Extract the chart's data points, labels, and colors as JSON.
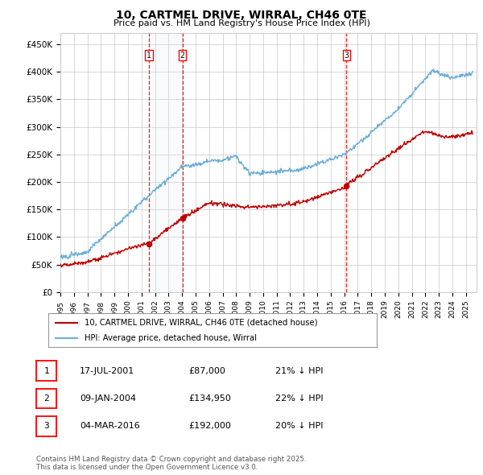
{
  "title": "10, CARTMEL DRIVE, WIRRAL, CH46 0TE",
  "subtitle": "Price paid vs. HM Land Registry's House Price Index (HPI)",
  "ylim": [
    0,
    470000
  ],
  "yticks": [
    0,
    50000,
    100000,
    150000,
    200000,
    250000,
    300000,
    350000,
    400000,
    450000
  ],
  "ytick_labels": [
    "£0",
    "£50K",
    "£100K",
    "£150K",
    "£200K",
    "£250K",
    "£300K",
    "£350K",
    "£400K",
    "£450K"
  ],
  "legend_entry1": "10, CARTMEL DRIVE, WIRRAL, CH46 0TE (detached house)",
  "legend_entry2": "HPI: Average price, detached house, Wirral",
  "transaction1_label": "1",
  "transaction1_date": "17-JUL-2001",
  "transaction1_price": "£87,000",
  "transaction1_hpi": "21% ↓ HPI",
  "transaction1_year": 2001.54,
  "transaction1_value": 87000,
  "transaction2_label": "2",
  "transaction2_date": "09-JAN-2004",
  "transaction2_price": "£134,950",
  "transaction2_hpi": "22% ↓ HPI",
  "transaction2_year": 2004.03,
  "transaction2_value": 134950,
  "transaction3_label": "3",
  "transaction3_date": "04-MAR-2016",
  "transaction3_price": "£192,000",
  "transaction3_hpi": "20% ↓ HPI",
  "transaction3_year": 2016.17,
  "transaction3_value": 192000,
  "hpi_color": "#6baed6",
  "price_color": "#c00000",
  "vline_color": "#ff0000",
  "shade_color": "#dce6f1",
  "footer": "Contains HM Land Registry data © Crown copyright and database right 2025.\nThis data is licensed under the Open Government Licence v3.0.",
  "background_color": "#ffffff",
  "grid_color": "#c8c8c8"
}
